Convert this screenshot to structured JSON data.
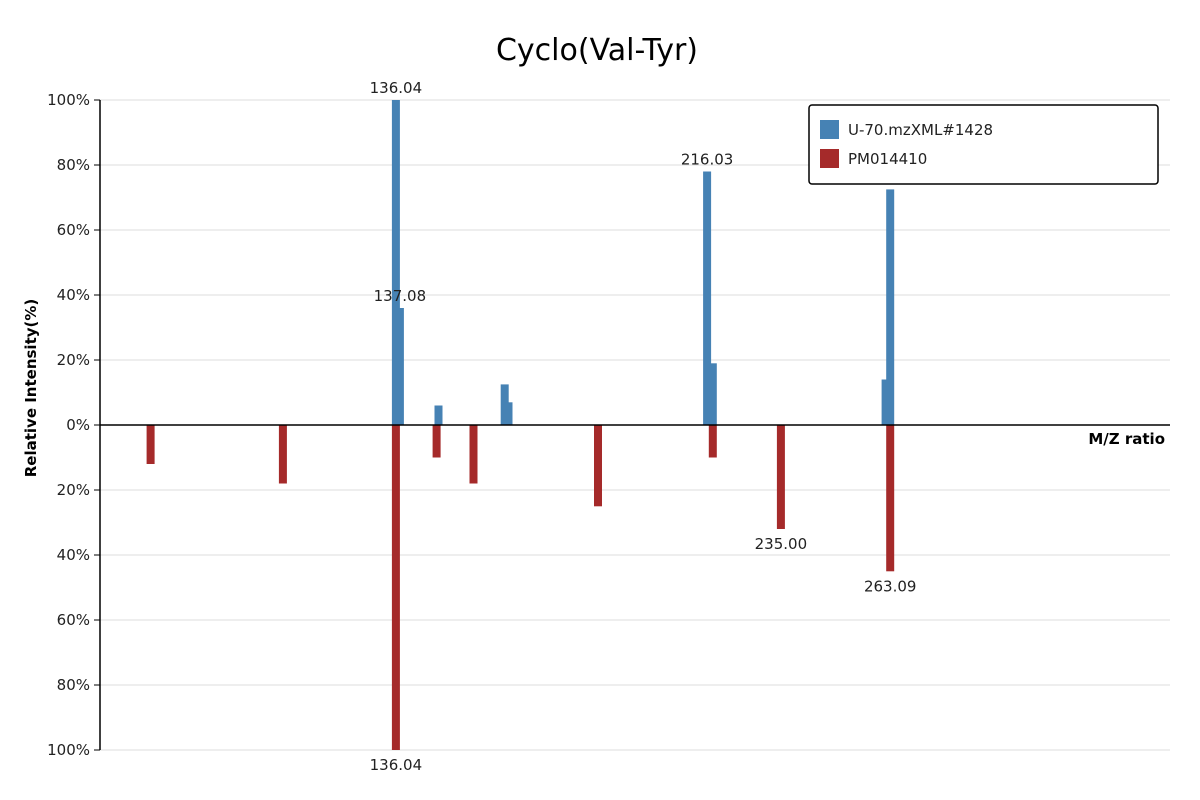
{
  "chart_data": {
    "type": "bar",
    "title": "Cyclo(Val-Tyr)",
    "xlabel": "M/Z ratio",
    "ylabel": "Relative Intensity(%)",
    "ylim": [
      -100,
      100
    ],
    "yticks": [
      "100%",
      "80%",
      "60%",
      "40%",
      "20%",
      "0%",
      "20%",
      "40%",
      "60%",
      "80%",
      "100%"
    ],
    "grid": true,
    "legend_position": "top-right",
    "series": [
      {
        "name": "U-70.mzXML#1428",
        "color": "#4682b4",
        "direction": "up",
        "peaks": [
          {
            "mz": 136.04,
            "intensity": 100,
            "label": "136.04"
          },
          {
            "mz": 137.08,
            "intensity": 36,
            "label": "137.08"
          },
          {
            "mz": 147.0,
            "intensity": 6
          },
          {
            "mz": 164.0,
            "intensity": 12.5
          },
          {
            "mz": 165.0,
            "intensity": 7
          },
          {
            "mz": 216.03,
            "intensity": 78,
            "label": "216.03"
          },
          {
            "mz": 217.5,
            "intensity": 19
          },
          {
            "mz": 261.9,
            "intensity": 14
          },
          {
            "mz": 263.09,
            "intensity": 72.5
          }
        ]
      },
      {
        "name": "PM014410",
        "color": "#a52a2a",
        "direction": "down",
        "peaks": [
          {
            "mz": 73.0,
            "intensity": 12
          },
          {
            "mz": 107.0,
            "intensity": 18
          },
          {
            "mz": 136.04,
            "intensity": 100,
            "label": "136.04"
          },
          {
            "mz": 146.5,
            "intensity": 10
          },
          {
            "mz": 156.0,
            "intensity": 18
          },
          {
            "mz": 188.0,
            "intensity": 25
          },
          {
            "mz": 217.5,
            "intensity": 10
          },
          {
            "mz": 235.0,
            "intensity": 32,
            "label": "235.00"
          },
          {
            "mz": 263.09,
            "intensity": 45,
            "label": "263.09"
          }
        ]
      }
    ]
  }
}
